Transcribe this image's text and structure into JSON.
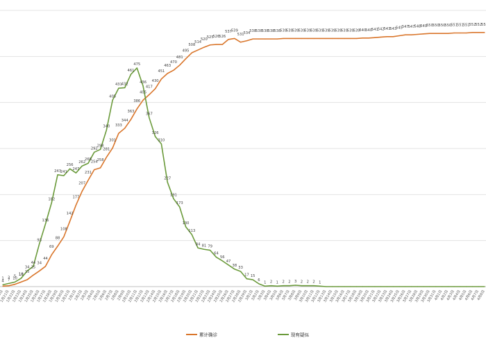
{
  "chart_data": {
    "type": "line",
    "title": "",
    "xlabel": "",
    "ylabel": "",
    "ylim": [
      0,
      600
    ],
    "grid": true,
    "legend": "bottom-center",
    "x": [
      "1月20日",
      "1月21日",
      "1月22日",
      "1月23日",
      "1月24日",
      "1月25日",
      "1月26日",
      "1月27日",
      "1月28日",
      "1月29日",
      "1月30日",
      "1月31日",
      "2月1日",
      "2月2日",
      "2月3日",
      "2月4日",
      "2月5日",
      "2月6日",
      "2月7日",
      "2月8日",
      "2月9日",
      "2月10日",
      "2月11日",
      "2月12日",
      "2月13日",
      "2月14日",
      "2月15日",
      "2月16日",
      "2月17日",
      "2月18日",
      "2月19日",
      "2月20日",
      "2月21日",
      "2月22日",
      "2月23日",
      "2月24日",
      "2月25日",
      "2月26日",
      "2月27日",
      "2月28日",
      "2月29日",
      "3月1日",
      "3月2日",
      "3月3日",
      "3月4日",
      "3月5日",
      "3月6日",
      "3月7日",
      "3月8日",
      "3月9日",
      "3月10日",
      "3月11日",
      "3月12日",
      "3月13日",
      "3月14日",
      "3月15日",
      "3月16日",
      "3月17日",
      "3月18日",
      "3月19日",
      "3月20日",
      "3月21日",
      "3月22日",
      "3月23日",
      "3月24日",
      "3月25日",
      "3月26日",
      "3月27日",
      "3月28日",
      "3月29日",
      "3月30日",
      "3月31日",
      "4月1日",
      "4月2日",
      "4月3日",
      "4月4日",
      "4月5日",
      "4月6日",
      "4月7日",
      "4月8日"
    ],
    "series": [
      {
        "name": "累计确诊",
        "color": "#d9752a",
        "values": [
          1,
          2,
          5,
          10,
          15,
          25,
          34,
          44,
          69,
          88,
          108,
          142,
          177,
          207,
          231,
          254,
          258,
          281,
          301,
          333,
          344,
          363,
          386,
          405,
          417,
          430,
          451,
          463,
          470,
          481,
          495,
          508,
          514,
          520,
          525,
          526,
          526,
          537,
          539,
          531,
          534,
          538,
          538,
          538,
          538,
          538,
          539,
          539,
          539,
          539,
          539,
          539,
          539,
          539,
          539,
          539,
          539,
          539,
          539,
          540,
          540,
          541,
          542,
          543,
          543,
          545,
          547,
          547,
          548,
          549,
          550,
          550,
          550,
          550,
          551,
          551,
          551,
          552,
          552,
          552
        ]
      },
      {
        "name": "现有疑似",
        "color": "#6a9a3a",
        "values": [
          4,
          7,
          10,
          18,
          34,
          44,
          93,
          136,
          182,
          243,
          241,
          256,
          247,
          262,
          268,
          292,
          298,
          340,
          405,
          431,
          432,
          461,
          475,
          436,
          367,
          326,
          310,
          227,
          191,
          173,
          130,
          113,
          84,
          81,
          79,
          64,
          56,
          47,
          38,
          33,
          17,
          15,
          6,
          1,
          2,
          1,
          2,
          2,
          3,
          2,
          2,
          2,
          1,
          0,
          0,
          0,
          0,
          0,
          0,
          0,
          0,
          0,
          0,
          0,
          0,
          0,
          0,
          0,
          0,
          0,
          0,
          0,
          0,
          0,
          0,
          0,
          0,
          0,
          0,
          0
        ]
      }
    ]
  }
}
